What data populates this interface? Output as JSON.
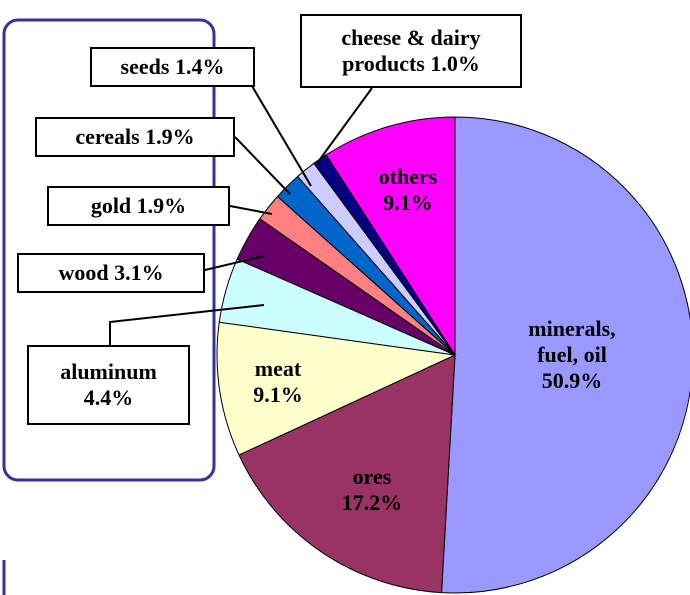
{
  "chart_data": {
    "type": "pie",
    "categories": [
      "minerals, fuel, oil",
      "ores",
      "meat",
      "aluminum",
      "wood",
      "gold",
      "cereals",
      "seeds",
      "cheese & dairy products",
      "others"
    ],
    "values": [
      50.9,
      17.2,
      9.1,
      4.4,
      3.1,
      1.9,
      1.9,
      1.4,
      1.0,
      9.1
    ],
    "value_labels": [
      "50.9%",
      "17.2%",
      "9.1%",
      "4.4%",
      "3.1%",
      "1.9%",
      "1.9%",
      "1.4%",
      "1.0%",
      "9.1%"
    ],
    "colors": [
      "#9999ff",
      "#993366",
      "#ffffcc",
      "#ccffff",
      "#660066",
      "#ff8080",
      "#0066cc",
      "#ccccff",
      "#000080",
      "#ff00ff"
    ]
  }
}
